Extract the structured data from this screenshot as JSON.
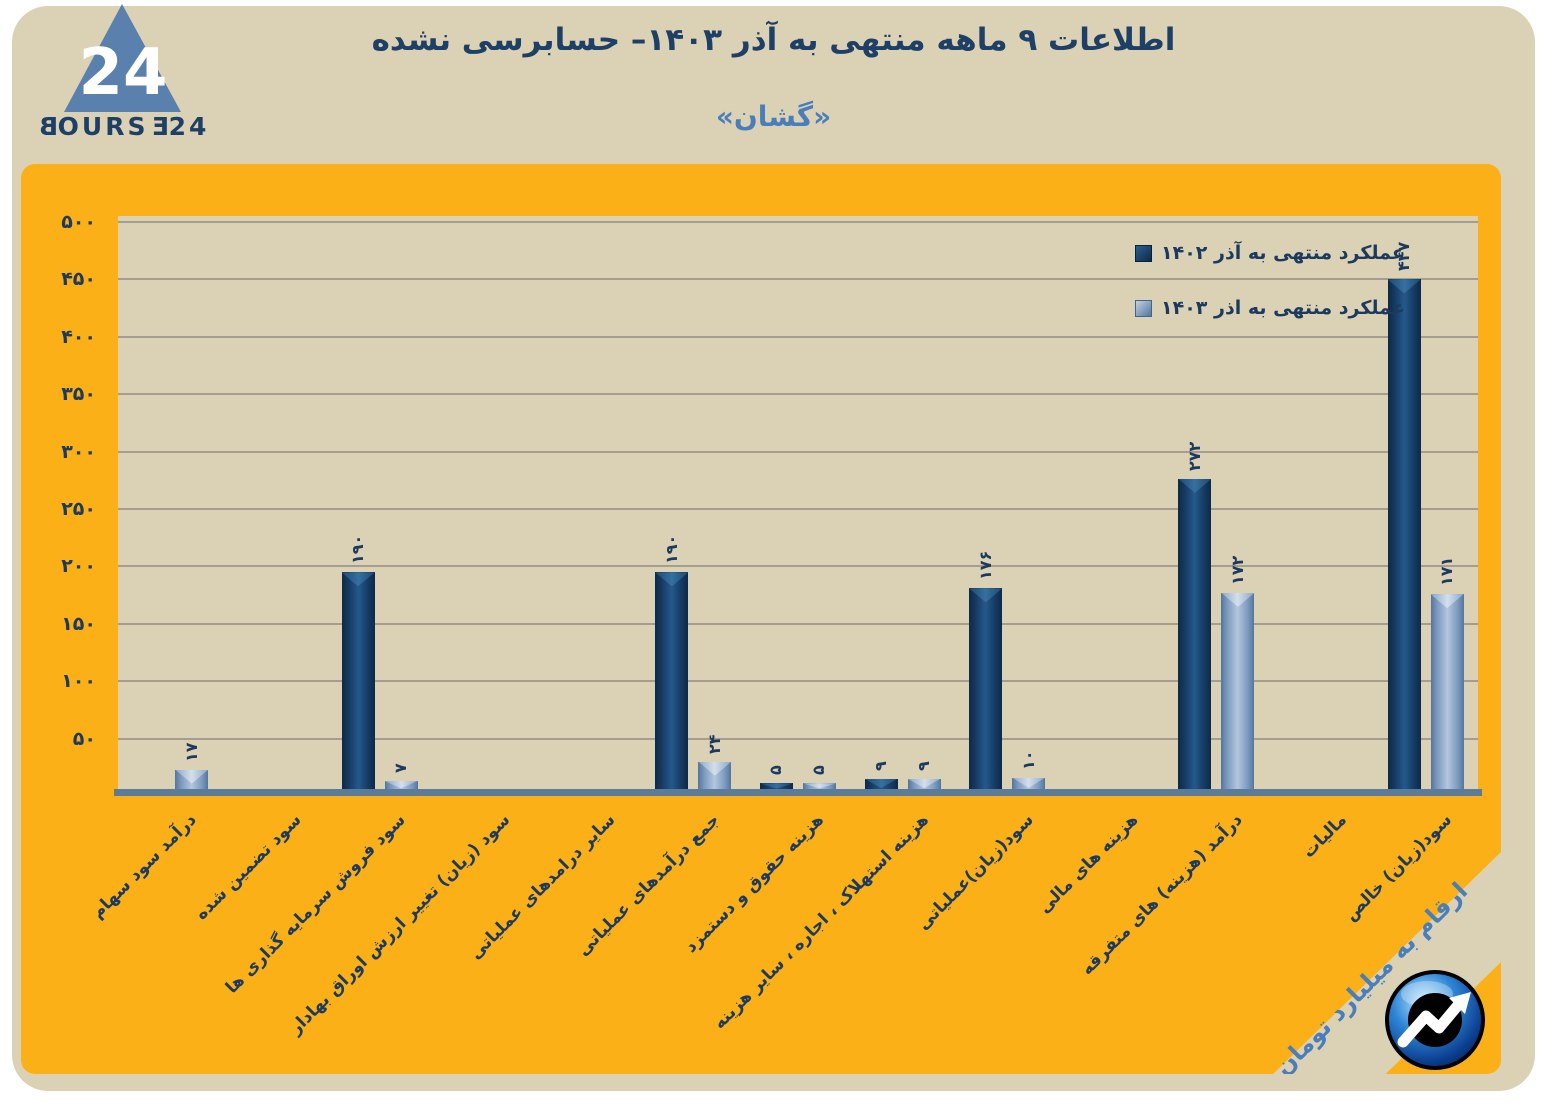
{
  "brand": {
    "wordmark_letters": [
      "B",
      "O",
      "U",
      "R",
      "S",
      "E",
      "2",
      "4"
    ],
    "logo_number": "24"
  },
  "header": {
    "title": "اطلاعات ۹ ماهه منتهی به آذر  ۱۴۰۳– حسابرسی نشده",
    "subtitle": "«گشان»"
  },
  "footer": {
    "units_note": "ارقام به میلیارد تومان"
  },
  "colors": {
    "panel_orange": "#FBB018",
    "background_beige": "#DBD2B5",
    "navy_text": "#1C3A5E",
    "steel_blue": "#4A7EBB",
    "bar_1402": "#17375E",
    "bar_1403": "#8FAADC",
    "baseline": "#5C7B99",
    "gridline": "#A59D8D"
  },
  "chart_data": {
    "type": "bar",
    "title": "اطلاعات ۹ ماهه منتهی به آذر  ۱۴۰۳– حسابرسی نشده",
    "subtitle": "«گشان»",
    "units": "ارقام به میلیارد تومان",
    "grid": true,
    "legend_position": "top-right",
    "categories": [
      "درآمد سود سهام",
      "سود تضمین شده",
      "سود فروش سرمایه گذاری ها",
      "سود (زیان) تغییر ارزش اوراق بهادار",
      "سایر درامدهای عملیاتی",
      "جمع درآمدهای عملیاتی",
      "هزینه حقوق و دستمزد",
      "هزینه استهلاک ، اجاره ، سایر هزینه",
      "سود(زیان)عملیاتی",
      "هزینه های مالی",
      "درآمد (هزینه) های متفرقه",
      "مالیات",
      "سود(زیان) خالص"
    ],
    "series": [
      {
        "name": "عملکرد منتهی به آذر ۱۴۰۲",
        "values": [
          0,
          0,
          190,
          0,
          0,
          190,
          5,
          9,
          176,
          0,
          272,
          0,
          447
        ],
        "value_labels": [
          "",
          "",
          "۱۹۰",
          "",
          "",
          "۱۹۰",
          "۵",
          "۹",
          "۱۷۶",
          "",
          "۲۷۲",
          "",
          "۴۴۷"
        ]
      },
      {
        "name": "عملکرد منتهی به اذر ۱۴۰۳",
        "values": [
          17,
          0,
          7,
          0,
          0,
          24,
          5,
          9,
          10,
          0,
          172,
          0,
          171
        ],
        "value_labels": [
          "۱۷",
          "",
          "۷",
          "",
          "",
          "۲۴",
          "۵",
          "۹",
          "۱۰",
          "",
          "۱۷۲",
          "",
          "۱۷۱"
        ]
      }
    ],
    "y_axis": {
      "range": [
        0,
        500
      ],
      "tick_values": [
        500,
        450,
        400,
        350,
        300,
        250,
        200,
        150,
        100,
        50
      ],
      "tick_labels": [
        "۵۰۰",
        "۴۵۰",
        "۴۰۰",
        "۳۵۰",
        "۳۰۰",
        "۲۵۰",
        "۲۰۰",
        "۱۵۰",
        "۱۰۰",
        "۵۰"
      ]
    }
  }
}
